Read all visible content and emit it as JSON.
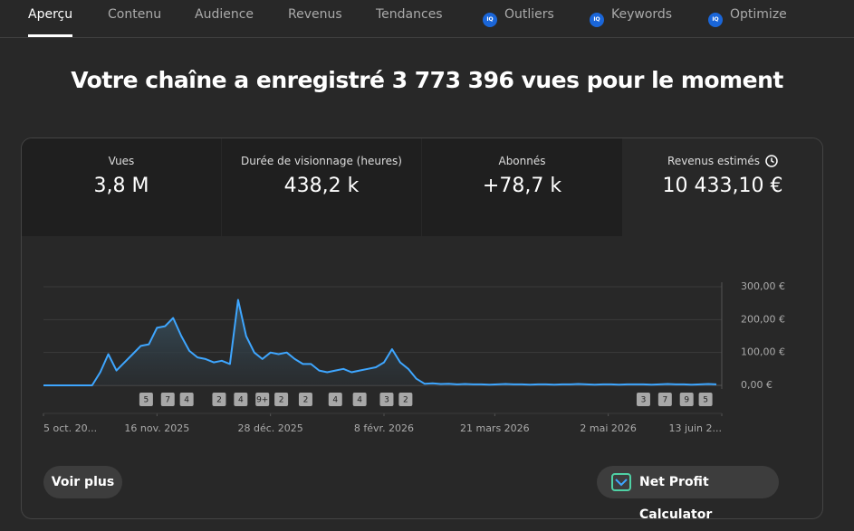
{
  "tabs": [
    "Aperçu",
    "Contenu",
    "Audience",
    "Revenus",
    "Tendances",
    "Outliers",
    "Keywords",
    "Optimize"
  ],
  "heading": "Votre chaîne a enregistré 3 773 396 vues pour le moment",
  "metrics": [
    {
      "label": "Vues",
      "value": "3,8 M"
    },
    {
      "label": "Durée de visionnage (heures)",
      "value": "438,2 k"
    },
    {
      "label": "Abonnés",
      "value": "+78,7 k"
    },
    {
      "label": "Revenus estimés",
      "value": "10 433,10 €"
    }
  ],
  "buttons": {
    "more": "Voir plus",
    "calculator": "Net Profit Calculator"
  },
  "chart_data": {
    "type": "line",
    "color": "#3ea6ff",
    "x": [
      0,
      3,
      6,
      9,
      12,
      15,
      18,
      21,
      24,
      27,
      30,
      33,
      36,
      39,
      42,
      45,
      48,
      51,
      54,
      57,
      60,
      63,
      66,
      69,
      72,
      75,
      78,
      81,
      84,
      87,
      90,
      93,
      96,
      99,
      102,
      105,
      108,
      111,
      114,
      117,
      120,
      123,
      126,
      129,
      132,
      135,
      138,
      141,
      144,
      147,
      150,
      153,
      156,
      159,
      162,
      165,
      168,
      171,
      174,
      177,
      180,
      183,
      186,
      189,
      192,
      195,
      198,
      201,
      204,
      207,
      210,
      213,
      216,
      219,
      222,
      225,
      228,
      231,
      234,
      237,
      240,
      243,
      246,
      249
    ],
    "values": [
      0,
      0,
      0,
      0,
      0,
      0,
      0,
      40,
      95,
      45,
      70,
      95,
      120,
      125,
      175,
      180,
      205,
      150,
      105,
      85,
      80,
      70,
      75,
      65,
      260,
      150,
      100,
      80,
      100,
      95,
      100,
      80,
      65,
      65,
      45,
      40,
      45,
      50,
      40,
      45,
      50,
      55,
      70,
      110,
      70,
      50,
      20,
      5,
      6,
      4,
      5,
      3,
      4,
      3,
      3,
      2,
      3,
      4,
      3,
      3,
      2,
      3,
      3,
      2,
      3,
      3,
      4,
      3,
      2,
      3,
      3,
      2,
      3,
      3,
      3,
      2,
      3,
      4,
      3,
      3,
      2,
      3,
      4,
      3
    ],
    "xlim": [
      0,
      251
    ],
    "xticks": [
      {
        "value": 0,
        "label": "5 oct. 20..."
      },
      {
        "value": 42,
        "label": "16 nov. 2025"
      },
      {
        "value": 84,
        "label": "28 déc. 2025"
      },
      {
        "value": 126,
        "label": "8 févr. 2026"
      },
      {
        "value": 167,
        "label": "21 mars 2026"
      },
      {
        "value": 209,
        "label": "2 mai 2026"
      },
      {
        "value": 251,
        "label": "13 juin 2..."
      }
    ],
    "ylim": [
      0,
      300
    ],
    "yticks": [
      {
        "value": 0,
        "label": "0,00 €"
      },
      {
        "value": 100,
        "label": "100,00 €"
      },
      {
        "value": 200,
        "label": "200,00 €"
      },
      {
        "value": 300,
        "label": "300,00 €"
      }
    ],
    "grid": true,
    "annotations": [
      {
        "x": 38,
        "label": "5"
      },
      {
        "x": 46,
        "label": "7"
      },
      {
        "x": 53,
        "label": "4"
      },
      {
        "x": 65,
        "label": "2"
      },
      {
        "x": 73,
        "label": "4"
      },
      {
        "x": 81,
        "label": "9+"
      },
      {
        "x": 88,
        "label": "2"
      },
      {
        "x": 97,
        "label": "2"
      },
      {
        "x": 108,
        "label": "4"
      },
      {
        "x": 117,
        "label": "4"
      },
      {
        "x": 127,
        "label": "3"
      },
      {
        "x": 134,
        "label": "2"
      },
      {
        "x": 222,
        "label": "3"
      },
      {
        "x": 230,
        "label": "7"
      },
      {
        "x": 238,
        "label": "9"
      },
      {
        "x": 245,
        "label": "5"
      }
    ]
  }
}
